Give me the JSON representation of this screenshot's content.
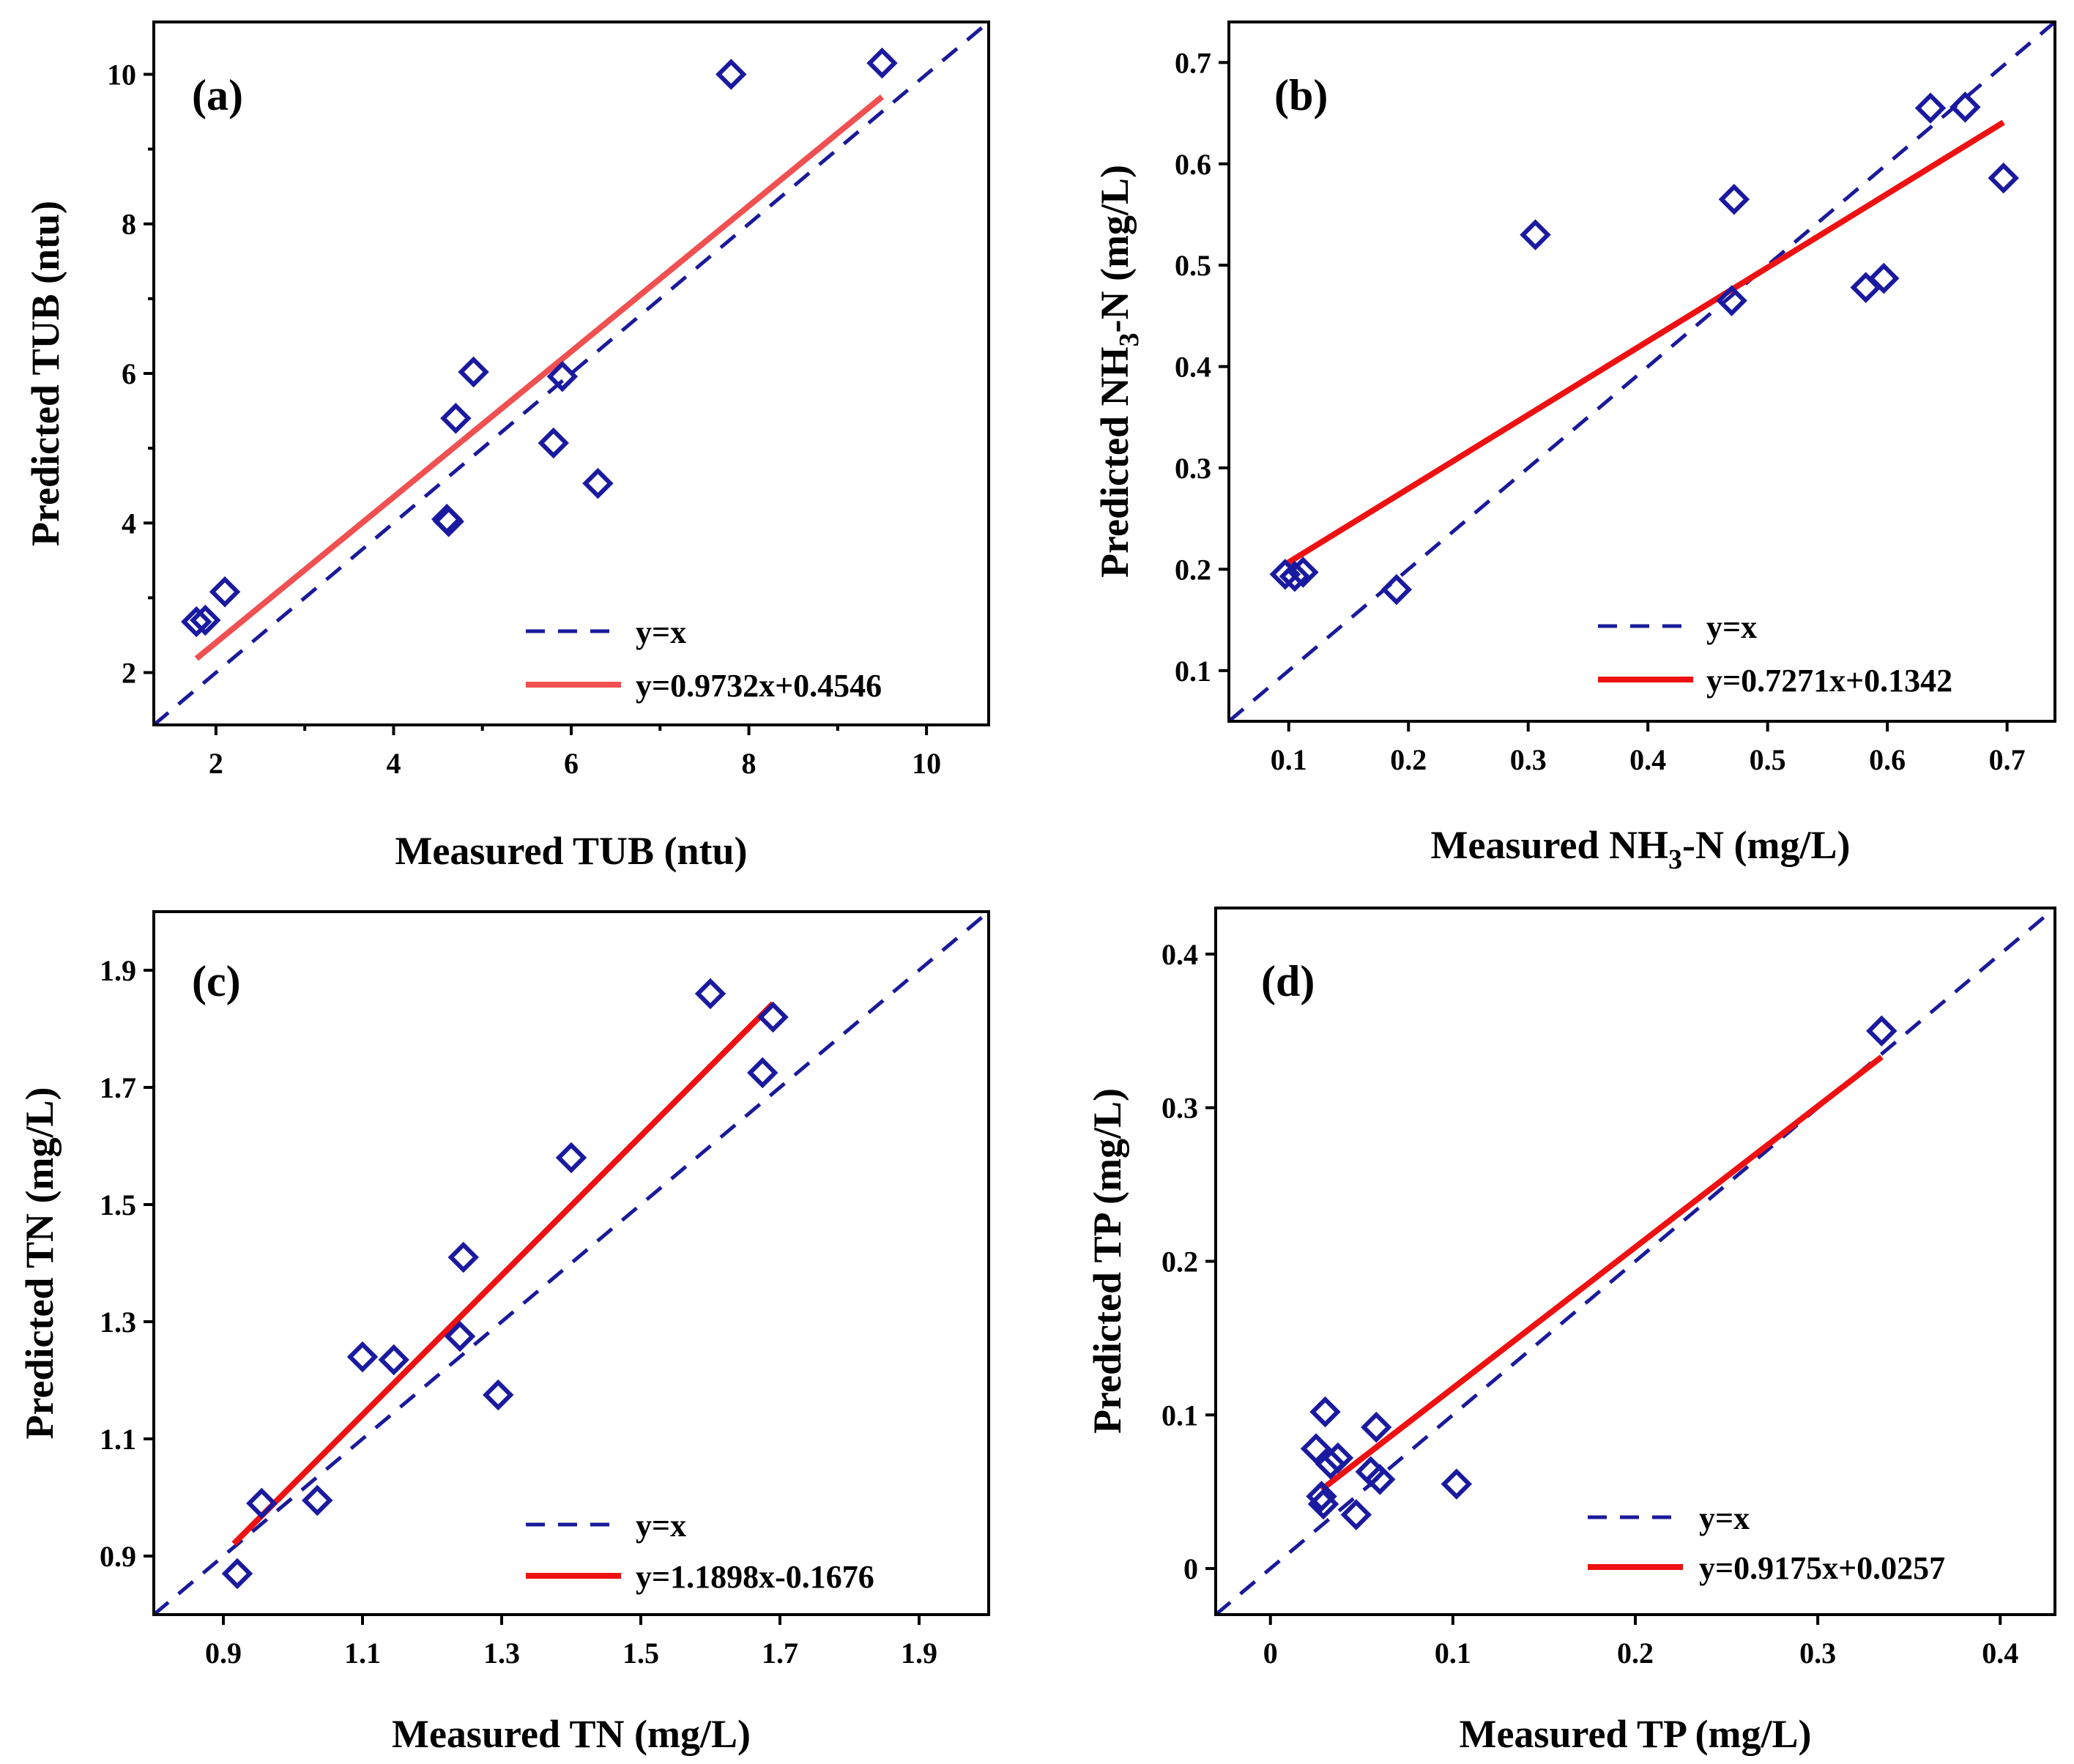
{
  "colors": {
    "reference": "#1a1a9a",
    "marker": "#1a1aa0",
    "fit_a": "#f05050",
    "fit_other": "#ee1111"
  },
  "chart_data": [
    {
      "type": "scatter",
      "panel": "(a)",
      "xlabel": "Measured TUB (ntu)",
      "ylabel": "Predicted TUB (ntu)",
      "xlim": [
        1.3,
        10.7
      ],
      "ylim": [
        1.3,
        10.7
      ],
      "xticks": [
        2,
        4,
        6,
        8,
        10
      ],
      "yticks": [
        2,
        4,
        6,
        8,
        10
      ],
      "xtick_labels": [
        "2",
        "4",
        "6",
        "8",
        "10"
      ],
      "ytick_labels": [
        "2",
        "4",
        "6",
        "8",
        "10"
      ],
      "minor_ticks": true,
      "series": [
        {
          "name": "data",
          "x": [
            1.78,
            1.88,
            2.1,
            4.6,
            4.62,
            4.7,
            4.9,
            5.8,
            5.9,
            6.3,
            7.8,
            9.5
          ],
          "y": [
            2.68,
            2.7,
            3.08,
            4.05,
            4.02,
            5.4,
            6.02,
            5.07,
            5.96,
            4.53,
            10.0,
            10.15
          ]
        }
      ],
      "fit": {
        "slope": 0.9732,
        "intercept": 0.4546,
        "x_range": [
          1.78,
          9.5
        ]
      },
      "legend": [
        "y=x",
        "y=0.9732x+0.4546"
      ],
      "legend_position": "bottom-right"
    },
    {
      "type": "scatter",
      "panel": "(b)",
      "xlabel": "Measured NH3-N (mg/L)",
      "ylabel": "Predicted NH3-N (mg/L)",
      "xlim": [
        0.05,
        0.74
      ],
      "ylim": [
        0.05,
        0.74
      ],
      "xticks": [
        0.1,
        0.2,
        0.3,
        0.4,
        0.5,
        0.6,
        0.7
      ],
      "yticks": [
        0.1,
        0.2,
        0.3,
        0.4,
        0.5,
        0.6,
        0.7
      ],
      "xtick_labels": [
        "0.1",
        "0.2",
        "0.3",
        "0.4",
        "0.5",
        "0.6",
        "0.7"
      ],
      "ytick_labels": [
        "0.1",
        "0.2",
        "0.3",
        "0.4",
        "0.5",
        "0.6",
        "0.7"
      ],
      "minor_ticks": false,
      "series": [
        {
          "name": "data",
          "x": [
            0.097,
            0.105,
            0.112,
            0.19,
            0.306,
            0.47,
            0.472,
            0.582,
            0.597,
            0.636,
            0.665,
            0.697
          ],
          "y": [
            0.195,
            0.193,
            0.197,
            0.18,
            0.53,
            0.465,
            0.565,
            0.478,
            0.487,
            0.655,
            0.656,
            0.586
          ]
        }
      ],
      "fit": {
        "slope": 0.7271,
        "intercept": 0.1342,
        "x_range": [
          0.097,
          0.697
        ]
      },
      "legend": [
        "y=x",
        "y=0.7271x+0.1342"
      ],
      "legend_position": "bottom-right"
    },
    {
      "type": "scatter",
      "panel": "(c)",
      "xlabel": "Measured TN (mg/L)",
      "ylabel": "Predicted TN (mg/L)",
      "xlim": [
        0.8,
        2.0
      ],
      "ylim": [
        0.8,
        2.0
      ],
      "xticks": [
        0.9,
        1.1,
        1.3,
        1.5,
        1.7,
        1.9
      ],
      "yticks": [
        0.9,
        1.1,
        1.3,
        1.5,
        1.7,
        1.9
      ],
      "xtick_labels": [
        "0.9",
        "1.1",
        "1.3",
        "1.5",
        "1.7",
        "1.9"
      ],
      "ytick_labels": [
        "0.9",
        "1.1",
        "1.3",
        "1.5",
        "1.7",
        "1.9"
      ],
      "minor_ticks": false,
      "series": [
        {
          "name": "data",
          "x": [
            0.92,
            0.955,
            1.035,
            1.1,
            1.145,
            1.24,
            1.245,
            1.295,
            1.4,
            1.6,
            1.675,
            1.69
          ],
          "y": [
            0.87,
            0.99,
            0.995,
            1.24,
            1.235,
            1.275,
            1.41,
            1.175,
            1.58,
            1.86,
            1.725,
            1.82
          ]
        }
      ],
      "fit": {
        "slope": 1.1898,
        "intercept": -0.1676,
        "x_range": [
          0.915,
          1.69
        ]
      },
      "legend": [
        "y=x",
        "y=1.1898x-0.1676"
      ],
      "legend_position": "bottom-right"
    },
    {
      "type": "scatter",
      "panel": "(d)",
      "xlabel": "Measured TP (mg/L)",
      "ylabel": "Predicted TP (mg/L)",
      "xlim": [
        -0.03,
        0.43
      ],
      "ylim": [
        -0.03,
        0.43
      ],
      "xticks": [
        0,
        0.1,
        0.2,
        0.3,
        0.4
      ],
      "yticks": [
        0,
        0.1,
        0.2,
        0.3,
        0.4
      ],
      "xtick_labels": [
        "0",
        "0.1",
        "0.2",
        "0.3",
        "0.4"
      ],
      "ytick_labels": [
        "0",
        "0.1",
        "0.2",
        "0.3",
        "0.4"
      ],
      "minor_ticks": false,
      "series": [
        {
          "name": "data",
          "x": [
            0.025,
            0.028,
            0.029,
            0.03,
            0.033,
            0.037,
            0.047,
            0.055,
            0.058,
            0.06,
            0.102,
            0.335
          ],
          "y": [
            0.078,
            0.047,
            0.042,
            0.102,
            0.068,
            0.072,
            0.035,
            0.063,
            0.092,
            0.058,
            0.055,
            0.35
          ]
        }
      ],
      "fit": {
        "slope": 0.9175,
        "intercept": 0.0257,
        "x_range": [
          0.028,
          0.335
        ]
      },
      "legend": [
        "y=x",
        "y=0.9175x+0.0257"
      ],
      "legend_position": "bottom-right"
    }
  ]
}
